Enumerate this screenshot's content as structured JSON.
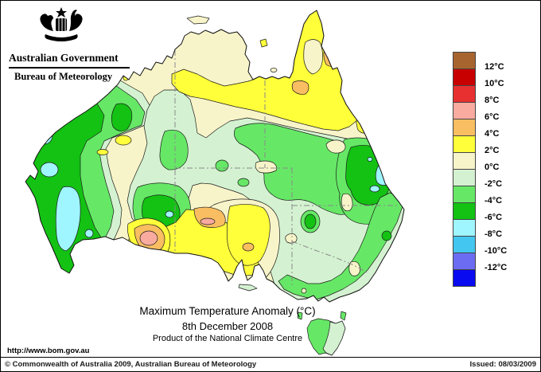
{
  "header": {
    "government_label": "Australian Government",
    "agency_label": "Bureau of Meteorology"
  },
  "map": {
    "title": "Maximum Temperature Anomaly (°C)",
    "date": "8th December 2008",
    "product_line": "Product of the National Climate Centre",
    "url": "http://www.bom.gov.au"
  },
  "legend": {
    "unit": "°C",
    "colors": [
      "#A8642F",
      "#C80000",
      "#E83030",
      "#F9ABA0",
      "#F9BE61",
      "#FFFF3A",
      "#F8F4C9",
      "#D4F2D1",
      "#66E866",
      "#13C213",
      "#9FF6FF",
      "#43C6F0",
      "#6C6CF2",
      "#0A0AF0"
    ],
    "labels": [
      "12°C",
      "10°C",
      "8°C",
      "6°C",
      "4°C",
      "2°C",
      "0°C",
      "-2°C",
      "-4°C",
      "-6°C",
      "-8°C",
      "-10°C",
      "-12°C"
    ]
  },
  "footer": {
    "copyright": "© Commonwealth of Australia 2009, Australian Bureau of Meteorology",
    "issued": "Issued: 08/03/2009"
  }
}
